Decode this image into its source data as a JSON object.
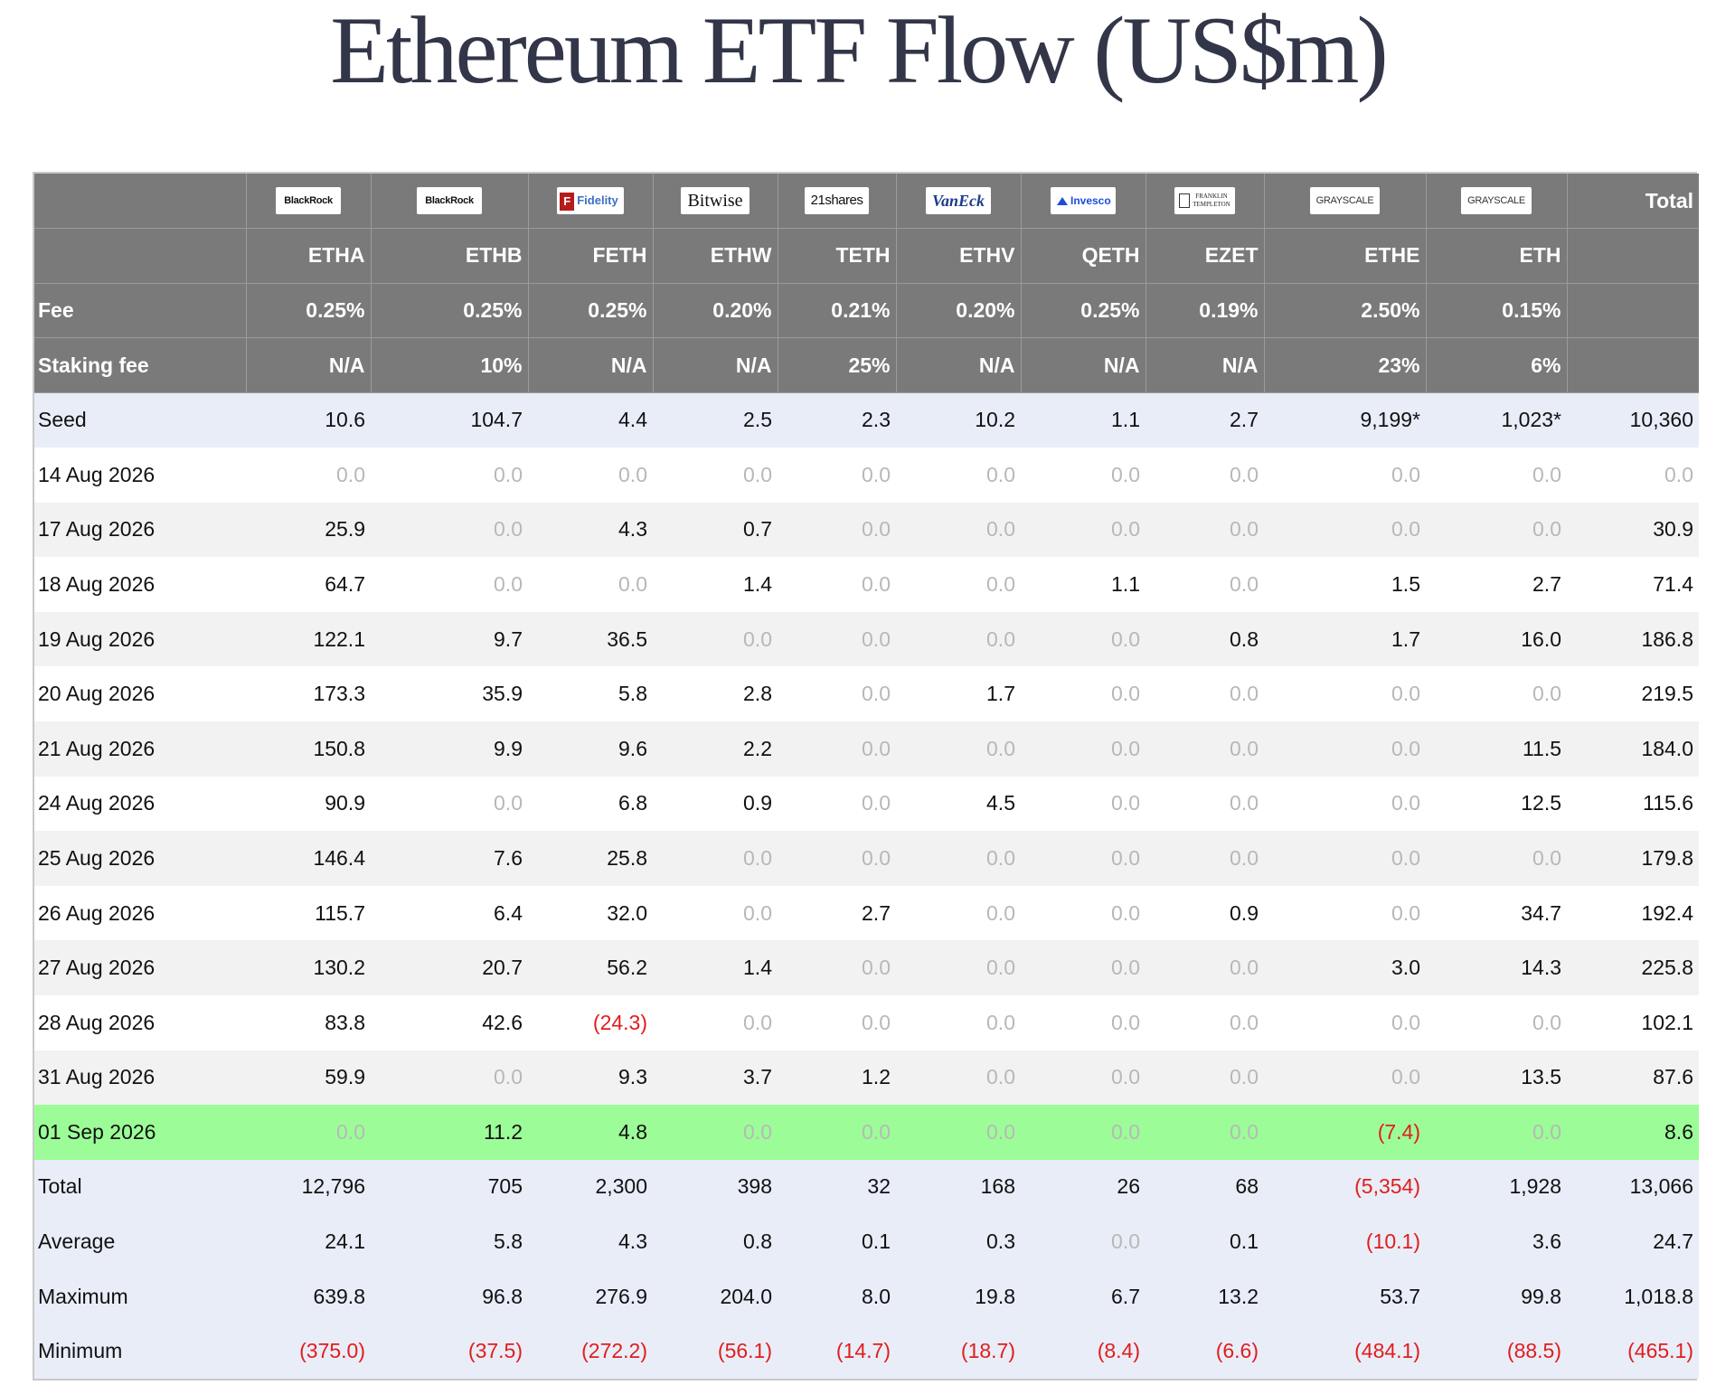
{
  "title": "Ethereum ETF Flow (US$m)",
  "colors": {
    "header_bg": "#7a7a7a",
    "seed_bg": "#e9edf8",
    "alt_row_bg": "#f2f2f2",
    "highlight_bg": "#9cfd98",
    "negative": "#e11d1d",
    "zero": "#b8b8b8"
  },
  "issuers": [
    {
      "name": "BlackRock",
      "icon": "blackrock-logo"
    },
    {
      "name": "BlackRock",
      "icon": "blackrock-logo"
    },
    {
      "name": "Fidelity",
      "mark": "F",
      "icon": "fidelity-logo"
    },
    {
      "name": "Bitwise",
      "icon": "bitwise-logo"
    },
    {
      "name": "21shares",
      "icon": "21shares-logo"
    },
    {
      "name": "VanEck",
      "icon": "vaneck-logo"
    },
    {
      "name": "Invesco",
      "icon": "invesco-logo"
    },
    {
      "name": "FRANKLIN TEMPLETON",
      "line1": "FRANKLIN",
      "line2": "TEMPLETON",
      "icon": "franklin-templeton-logo"
    },
    {
      "name": "GRAYSCALE",
      "icon": "grayscale-logo"
    },
    {
      "name": "GRAYSCALE",
      "icon": "grayscale-logo"
    }
  ],
  "header": {
    "total_label": "Total",
    "tickers": [
      "ETHA",
      "ETHB",
      "FETH",
      "ETHW",
      "TETH",
      "ETHV",
      "QETH",
      "EZET",
      "ETHE",
      "ETH"
    ],
    "fee_label": "Fee",
    "fees": [
      "0.25%",
      "0.25%",
      "0.25%",
      "0.20%",
      "0.21%",
      "0.20%",
      "0.25%",
      "0.19%",
      "2.50%",
      "0.15%"
    ],
    "staking_label": "Staking fee",
    "staking_fees": [
      "N/A",
      "10%",
      "N/A",
      "N/A",
      "25%",
      "N/A",
      "N/A",
      "N/A",
      "23%",
      "6%"
    ]
  },
  "seed": {
    "label": "Seed",
    "values": [
      "10.6",
      "104.7",
      "4.4",
      "2.5",
      "2.3",
      "10.2",
      "1.1",
      "2.7",
      "9,199*",
      "1,023*",
      "10,360"
    ]
  },
  "rows": [
    {
      "date": "14 Aug 2026",
      "values": [
        "0.0",
        "0.0",
        "0.0",
        "0.0",
        "0.0",
        "0.0",
        "0.0",
        "0.0",
        "0.0",
        "0.0",
        "0.0"
      ]
    },
    {
      "date": "17 Aug 2026",
      "values": [
        "25.9",
        "0.0",
        "4.3",
        "0.7",
        "0.0",
        "0.0",
        "0.0",
        "0.0",
        "0.0",
        "0.0",
        "30.9"
      ]
    },
    {
      "date": "18 Aug 2026",
      "values": [
        "64.7",
        "0.0",
        "0.0",
        "1.4",
        "0.0",
        "0.0",
        "1.1",
        "0.0",
        "1.5",
        "2.7",
        "71.4"
      ]
    },
    {
      "date": "19 Aug 2026",
      "values": [
        "122.1",
        "9.7",
        "36.5",
        "0.0",
        "0.0",
        "0.0",
        "0.0",
        "0.8",
        "1.7",
        "16.0",
        "186.8"
      ]
    },
    {
      "date": "20 Aug 2026",
      "values": [
        "173.3",
        "35.9",
        "5.8",
        "2.8",
        "0.0",
        "1.7",
        "0.0",
        "0.0",
        "0.0",
        "0.0",
        "219.5"
      ]
    },
    {
      "date": "21 Aug 2026",
      "values": [
        "150.8",
        "9.9",
        "9.6",
        "2.2",
        "0.0",
        "0.0",
        "0.0",
        "0.0",
        "0.0",
        "11.5",
        "184.0"
      ]
    },
    {
      "date": "24 Aug 2026",
      "values": [
        "90.9",
        "0.0",
        "6.8",
        "0.9",
        "0.0",
        "4.5",
        "0.0",
        "0.0",
        "0.0",
        "12.5",
        "115.6"
      ]
    },
    {
      "date": "25 Aug 2026",
      "values": [
        "146.4",
        "7.6",
        "25.8",
        "0.0",
        "0.0",
        "0.0",
        "0.0",
        "0.0",
        "0.0",
        "0.0",
        "179.8"
      ]
    },
    {
      "date": "26 Aug 2026",
      "values": [
        "115.7",
        "6.4",
        "32.0",
        "0.0",
        "2.7",
        "0.0",
        "0.0",
        "0.9",
        "0.0",
        "34.7",
        "192.4"
      ]
    },
    {
      "date": "27 Aug 2026",
      "values": [
        "130.2",
        "20.7",
        "56.2",
        "1.4",
        "0.0",
        "0.0",
        "0.0",
        "0.0",
        "3.0",
        "14.3",
        "225.8"
      ]
    },
    {
      "date": "28 Aug 2026",
      "values": [
        "83.8",
        "42.6",
        "(24.3)",
        "0.0",
        "0.0",
        "0.0",
        "0.0",
        "0.0",
        "0.0",
        "0.0",
        "102.1"
      ]
    },
    {
      "date": "31 Aug 2026",
      "values": [
        "59.9",
        "0.0",
        "9.3",
        "3.7",
        "1.2",
        "0.0",
        "0.0",
        "0.0",
        "0.0",
        "13.5",
        "87.6"
      ]
    },
    {
      "date": "01 Sep 2026",
      "highlight": true,
      "values": [
        "0.0",
        "11.2",
        "4.8",
        "0.0",
        "0.0",
        "0.0",
        "0.0",
        "0.0",
        "(7.4)",
        "0.0",
        "8.6"
      ]
    }
  ],
  "summary": [
    {
      "label": "Total",
      "values": [
        "12,796",
        "705",
        "2,300",
        "398",
        "32",
        "168",
        "26",
        "68",
        "(5,354)",
        "1,928",
        "13,066"
      ]
    },
    {
      "label": "Average",
      "values": [
        "24.1",
        "5.8",
        "4.3",
        "0.8",
        "0.1",
        "0.3",
        "0.0",
        "0.1",
        "(10.1)",
        "3.6",
        "24.7"
      ]
    },
    {
      "label": "Maximum",
      "values": [
        "639.8",
        "96.8",
        "276.9",
        "204.0",
        "8.0",
        "19.8",
        "6.7",
        "13.2",
        "53.7",
        "99.8",
        "1,018.8"
      ]
    },
    {
      "label": "Minimum",
      "values": [
        "(375.0)",
        "(37.5)",
        "(272.2)",
        "(56.1)",
        "(14.7)",
        "(18.7)",
        "(8.4)",
        "(6.6)",
        "(484.1)",
        "(88.5)",
        "(465.1)"
      ]
    }
  ]
}
